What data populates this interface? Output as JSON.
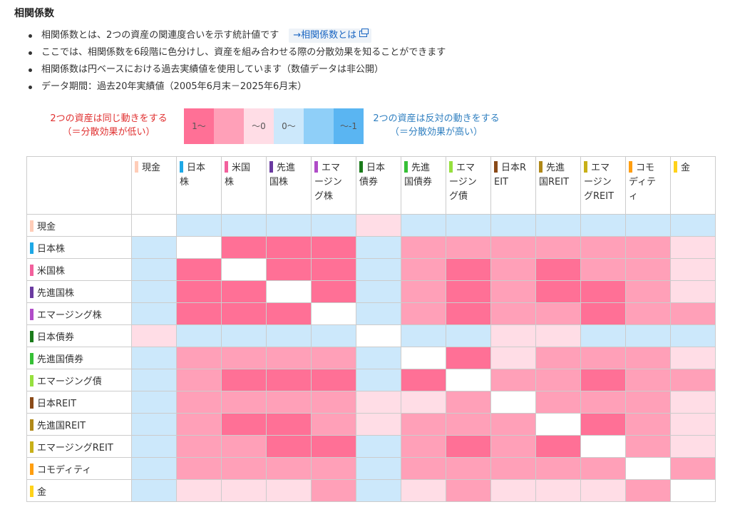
{
  "title": "相関係数",
  "bullets": [
    "相関係数とは、2つの資産の関連度合いを示す統計値です",
    "ここでは、相関係数を6段階に色分けし、資産を組み合わせる際の分散効果を知ることができます",
    "相関係数は円ベースにおける過去実績値を使用しています（数値データは非公開）",
    "データ期間：過去20年実績値（2005年6月末－2025年6月末）"
  ],
  "info_link": "→相関係数とは",
  "icons": {
    "info_link": "external-window-icon"
  },
  "legend": {
    "left_line1": "2つの資産は同じ動きをする",
    "left_line2": "（＝分散効果が低い）",
    "right_line1": "2つの資産は反対の動きをする",
    "right_line2": "（＝分散効果が高い）",
    "swatches": [
      {
        "label": "1～",
        "color": "#ff7096"
      },
      {
        "label": "",
        "color": "#ffa0b8"
      },
      {
        "label": "～0",
        "color": "#ffdde6"
      },
      {
        "label": "0～",
        "color": "#cce8fb"
      },
      {
        "label": "",
        "color": "#8fcff8"
      },
      {
        "label": "～-1",
        "color": "#5ab5f2"
      }
    ]
  },
  "level_colors": [
    "#ffffff",
    "#ff7096",
    "#ffa0b8",
    "#ffdde6",
    "#cce8fb"
  ],
  "assets": [
    {
      "name": "現金",
      "header": [
        "現金"
      ],
      "color": "#ffcdb8"
    },
    {
      "name": "日本株",
      "header": [
        "日本",
        "株"
      ],
      "color": "#1ea8e6"
    },
    {
      "name": "米国株",
      "header": [
        "米国",
        "株"
      ],
      "color": "#f2609c"
    },
    {
      "name": "先進国株",
      "header": [
        "先進",
        "国株"
      ],
      "color": "#6a3aa0"
    },
    {
      "name": "エマージング株",
      "header": [
        "エマ",
        "ージン",
        "グ株"
      ],
      "color": "#b04cc8"
    },
    {
      "name": "日本債券",
      "header": [
        "日本",
        "債券"
      ],
      "color": "#1a7a1a"
    },
    {
      "name": "先進国債券",
      "header": [
        "先進",
        "国債券"
      ],
      "color": "#36c036"
    },
    {
      "name": "エマージング債",
      "header": [
        "エマ",
        "ージン",
        "グ債"
      ],
      "color": "#96e03e"
    },
    {
      "name": "日本REIT",
      "header": [
        "日本R",
        "EIT"
      ],
      "color": "#8a4a18"
    },
    {
      "name": "先進国REIT",
      "header": [
        "先進",
        "国REIT"
      ],
      "color": "#b08818"
    },
    {
      "name": "エマージングREIT",
      "header": [
        "エマ",
        "ージン",
        "グREIT"
      ],
      "color": "#c8b018"
    },
    {
      "name": "コモディティ",
      "header": [
        "コモ",
        "ディテ",
        "ィ"
      ],
      "color": "#ff9e10"
    },
    {
      "name": "金",
      "header": [
        "金"
      ],
      "color": "#ffd21a"
    }
  ],
  "matrix_levels": [
    [
      0,
      4,
      4,
      4,
      4,
      3,
      4,
      4,
      4,
      4,
      4,
      4,
      4
    ],
    [
      4,
      0,
      1,
      1,
      1,
      4,
      2,
      2,
      2,
      2,
      2,
      2,
      3
    ],
    [
      4,
      1,
      0,
      1,
      1,
      4,
      2,
      1,
      2,
      1,
      2,
      2,
      3
    ],
    [
      4,
      1,
      1,
      0,
      1,
      4,
      2,
      1,
      2,
      1,
      1,
      2,
      3
    ],
    [
      4,
      1,
      1,
      1,
      0,
      4,
      2,
      1,
      2,
      2,
      1,
      2,
      2
    ],
    [
      3,
      4,
      4,
      4,
      4,
      0,
      4,
      4,
      3,
      3,
      4,
      4,
      4
    ],
    [
      4,
      2,
      2,
      2,
      2,
      4,
      0,
      1,
      3,
      2,
      2,
      2,
      3
    ],
    [
      4,
      2,
      1,
      1,
      1,
      4,
      1,
      0,
      2,
      2,
      1,
      2,
      2
    ],
    [
      4,
      2,
      2,
      2,
      2,
      3,
      3,
      2,
      0,
      2,
      2,
      2,
      3
    ],
    [
      4,
      2,
      1,
      1,
      2,
      3,
      2,
      2,
      2,
      0,
      1,
      2,
      3
    ],
    [
      4,
      2,
      2,
      1,
      1,
      4,
      2,
      1,
      2,
      1,
      0,
      2,
      3
    ],
    [
      4,
      2,
      2,
      2,
      2,
      4,
      2,
      2,
      2,
      2,
      2,
      0,
      2
    ],
    [
      4,
      3,
      3,
      3,
      2,
      4,
      3,
      2,
      3,
      3,
      3,
      2,
      0
    ]
  ]
}
